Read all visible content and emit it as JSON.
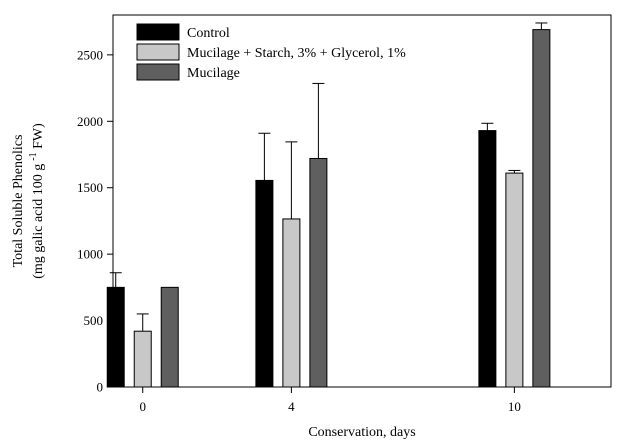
{
  "chart_data": {
    "type": "bar",
    "categories": [
      "0",
      "4",
      "10"
    ],
    "x_positions": [
      0,
      4,
      10
    ],
    "xlim": [
      -0.8,
      12.6
    ],
    "xlabel": "Conservation, days",
    "ylabel_line1": "Total Soluble Phenolics",
    "ylabel_line2_pre": "(mg galic acid 100 g",
    "ylabel_line2_sup": "-1",
    "ylabel_line2_post": " FW)",
    "ylim": [
      0,
      2800
    ],
    "yticks": [
      0,
      500,
      1000,
      1500,
      2000,
      2500
    ],
    "grid": false,
    "legend_position": "top-left",
    "series": [
      {
        "name": "Control",
        "color": "#000000",
        "values": [
          750,
          1555,
          1930
        ],
        "errors": [
          110,
          355,
          55
        ]
      },
      {
        "name": "Mucilage + Starch, 3% + Glycerol, 1%",
        "color": "#c8c8c8",
        "values": [
          420,
          1265,
          1610
        ],
        "errors": [
          130,
          580,
          20
        ]
      },
      {
        "name": "Mucilage",
        "color": "#5f5f5f",
        "values": [
          750,
          1720,
          2690
        ],
        "errors": [
          0,
          565,
          50
        ]
      }
    ]
  }
}
